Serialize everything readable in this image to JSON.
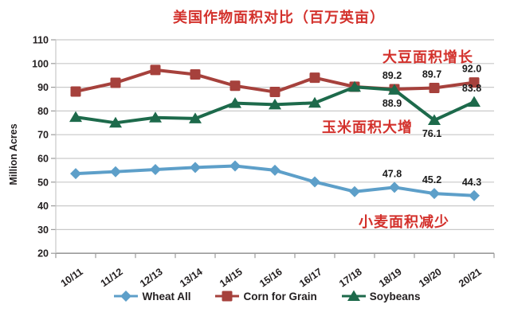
{
  "title": "美国作物面积对比（百万英亩）",
  "colors": {
    "title_red": "#D3312C",
    "annotation_red": "#D3312C",
    "wheat_blue": "#5D9FC9",
    "corn_red": "#A6413C",
    "soybean_green": "#1D6A4B",
    "gridline_gray": "#C9C9C9",
    "axis_gray": "#9B9B9B",
    "text_black": "#231F20"
  },
  "chart_data": {
    "type": "line",
    "title": "美国作物面积对比（百万英亩）",
    "xlabel": "",
    "ylabel": "Million Acres",
    "ylim": [
      20,
      110
    ],
    "ytick_step": 10,
    "yticks": [
      "110",
      "100",
      "90",
      "80",
      "70",
      "60",
      "50",
      "40",
      "30",
      "20"
    ],
    "grid": true,
    "legend_position": "bottom",
    "categories": [
      "10/11",
      "11/12",
      "12/13",
      "13/14",
      "14/15",
      "15/16",
      "16/17",
      "17/18",
      "18/19",
      "19/20",
      "20/21"
    ],
    "series": [
      {
        "name": "Wheat All",
        "marker": "diamond",
        "color": "#5D9FC9",
        "values": [
          53.6,
          54.4,
          55.3,
          56.2,
          56.8,
          55.0,
          50.1,
          46.0,
          47.8,
          45.2,
          44.3
        ],
        "point_labels": [
          {
            "i": 8,
            "text": "47.8",
            "pos": "above"
          },
          {
            "i": 9,
            "text": "45.2",
            "pos": "above"
          },
          {
            "i": 10,
            "text": "44.3",
            "pos": "above"
          }
        ]
      },
      {
        "name": "Corn for Grain",
        "marker": "square",
        "color": "#A6413C",
        "values": [
          88.2,
          91.9,
          97.3,
          95.4,
          90.6,
          88.0,
          94.0,
          90.2,
          89.2,
          89.7,
          92.0
        ],
        "point_labels": [
          {
            "i": 8,
            "text": "89.2",
            "pos": "above"
          },
          {
            "i": 9,
            "text": "89.7",
            "pos": "above"
          },
          {
            "i": 10,
            "text": "92.0",
            "pos": "above"
          }
        ]
      },
      {
        "name": "Soybeans",
        "marker": "triangle",
        "color": "#1D6A4B",
        "values": [
          77.4,
          75.0,
          77.2,
          76.8,
          83.3,
          82.7,
          83.4,
          90.1,
          88.9,
          76.1,
          83.8
        ],
        "point_labels": [
          {
            "i": 8,
            "text": "88.9",
            "pos": "below"
          },
          {
            "i": 9,
            "text": "76.1",
            "pos": "below"
          },
          {
            "i": 10,
            "text": "83.8",
            "pos": "above"
          }
        ]
      }
    ],
    "annotations": [
      {
        "text": "大豆面积增长",
        "near": "soybean rise, top right"
      },
      {
        "text": "玉米面积大增",
        "near": "corn line, middle right"
      },
      {
        "text": "小麦面积减少",
        "near": "wheat decline, bottom right"
      }
    ]
  }
}
